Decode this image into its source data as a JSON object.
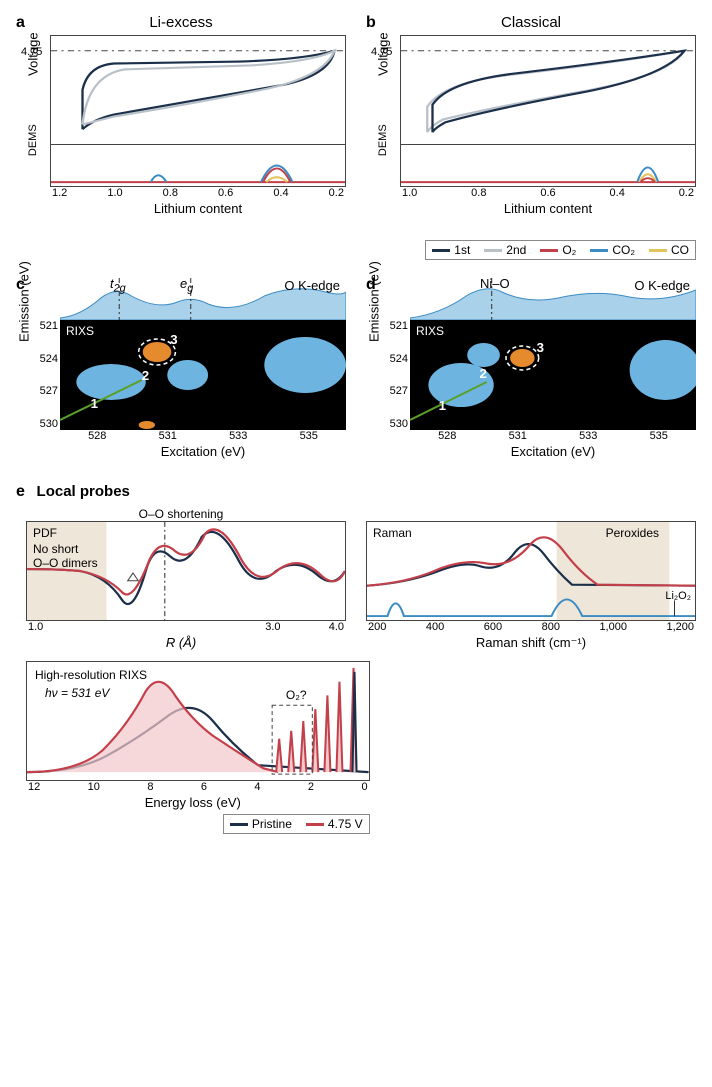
{
  "colors": {
    "c1st": "#1c2f4a",
    "c2nd": "#b9c1c8",
    "cO2": "#c3404a",
    "cCO2": "#3b8cc4",
    "cCO": "#e2c35d",
    "rixs_blob": "#6db5e0",
    "rixs_orange": "#e68a2e",
    "rixs_green": "#5aa028",
    "raman_blue": "#3b8cc4",
    "pristine": "#1c2f4a",
    "charged": "#c3404a",
    "shade": "#eee6d8"
  },
  "panelA": {
    "label": "a",
    "title": "Li-excess",
    "y1": "Voltage",
    "y2": "DEMS",
    "xlabel": "Lithium content",
    "xticks": [
      "1.2",
      "1.0",
      "0.8",
      "0.6",
      "0.4",
      "0.2"
    ],
    "v475": "4.75"
  },
  "panelB": {
    "label": "b",
    "title": "Classical",
    "y1": "Voltage",
    "y2": "DEMS",
    "xlabel": "Lithium content",
    "xticks": [
      "1.0",
      "0.8",
      "0.6",
      "0.4",
      "0.2"
    ],
    "v475": "4.75"
  },
  "legendAB": {
    "items": [
      {
        "label": "1st",
        "key": "c1st"
      },
      {
        "label": "2nd",
        "key": "c2nd"
      },
      {
        "label": "O₂",
        "key": "cO2"
      },
      {
        "label": "CO₂",
        "key": "cCO2"
      },
      {
        "label": "CO",
        "key": "cCO"
      }
    ]
  },
  "panelC": {
    "label": "c",
    "t2g": "t",
    "t2g_sub": "2g",
    "eg": "e",
    "eg_sub": "g",
    "okedge": "O K-edge",
    "rixs": "RIXS",
    "ylabel": "Emission (eV)",
    "xlabel": "Excitation (eV)",
    "yticks": [
      "521",
      "524",
      "527",
      "530"
    ],
    "xticks": [
      "528",
      "531",
      "533",
      "535"
    ],
    "n1": "1",
    "n2": "2",
    "n3": "3"
  },
  "panelD": {
    "label": "d",
    "nio": "Ni–O",
    "okedge": "O K-edge",
    "rixs": "RIXS",
    "ylabel": "Emission (eV)",
    "xlabel": "Excitation (eV)",
    "yticks": [
      "521",
      "524",
      "527",
      "530"
    ],
    "xticks": [
      "528",
      "531",
      "533",
      "535"
    ],
    "n1": "1",
    "n2": "2",
    "n3": "3"
  },
  "panelE": {
    "label": "e",
    "title": "Local probes",
    "pdf": {
      "tag": "PDF",
      "note1": "No short",
      "note2": "O–O dimers",
      "ooshort": "O–O shortening",
      "xlabel": "R (Å)",
      "xticks": [
        "1.0",
        "3.0",
        "4.0"
      ]
    },
    "raman": {
      "tag": "Raman",
      "perox": "Peroxides",
      "li2o2": "Li₂O₂",
      "xlabel": "Raman shift (cm⁻¹)",
      "xticks": [
        "200",
        "400",
        "600",
        "800",
        "1,000",
        "1,200"
      ]
    },
    "hrrixs": {
      "tag": "High-resolution RIXS",
      "hv": "hν = 531 eV",
      "o2q": "O₂?",
      "xlabel": "Energy loss (eV)",
      "xticks": [
        "12",
        "10",
        "8",
        "6",
        "4",
        "2",
        "0"
      ]
    },
    "legend": {
      "pristine": "Pristine",
      "charged": "4.75 V"
    }
  }
}
